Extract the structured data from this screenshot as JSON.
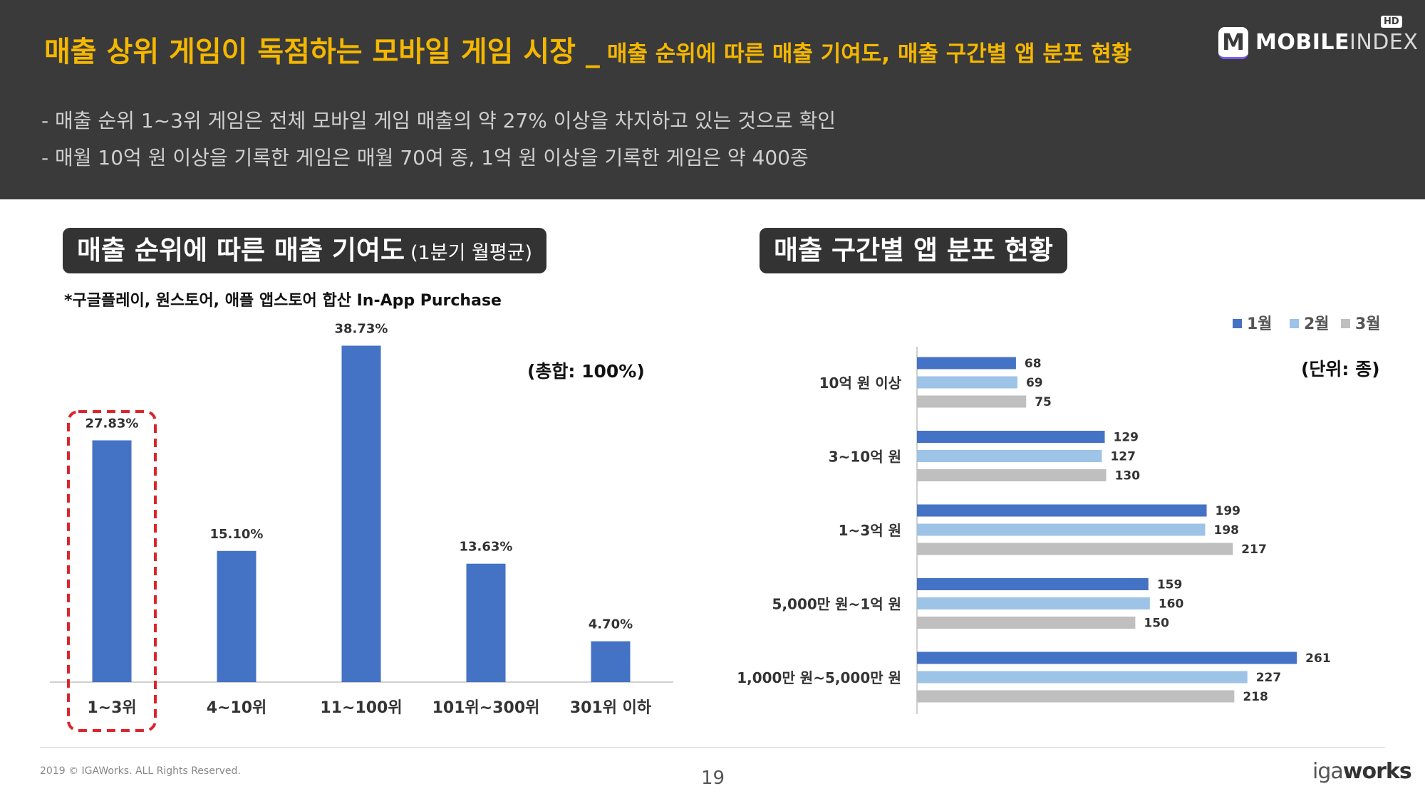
{
  "header": {
    "title_main": "매출 상위 게임이 독점하는 모바일 게임 시장 _",
    "title_sub": "매출 순위에 따른 매출 기여도, 매출 구간별 앱 분포 현황",
    "bullets": [
      "- 매출 순위 1~3위 게임은 전체 모바일 게임 매출의 약 27% 이상을 차지하고 있는 것으로 확인",
      "- 매월 10억 원 이상을 기록한 게임은 매월 70여 종, 1억 원 이상을 기록한 게임은 약 400종"
    ],
    "logo": {
      "m": "M",
      "name_bold": "MOBILE",
      "name_light": "INDEX",
      "badge": "HD"
    }
  },
  "left_panel": {
    "title_main": "매출 순위에 따른 매출 기여도",
    "title_sub": "(1분기 월평균)",
    "note": "*구글플레이, 원스토어, 애플 앱스토어 합산 In-App Purchase",
    "total_label": "(총합: 100%)"
  },
  "right_panel": {
    "title_main": "매출 구간별 앱 분포 현황",
    "unit_label": "(단위: 종)"
  },
  "chart_data": [
    {
      "type": "bar",
      "categories": [
        "1~3위",
        "4~10위",
        "11~100위",
        "101위~300위",
        "301위 이하"
      ],
      "values": [
        27.83,
        15.1,
        38.73,
        13.63,
        4.7
      ],
      "value_labels": [
        "27.83%",
        "15.10%",
        "38.73%",
        "13.63%",
        "4.70%"
      ],
      "ylim": [
        0,
        40
      ],
      "highlight_category": "1~3위",
      "color": "#4472c4"
    },
    {
      "type": "bar",
      "orientation": "horizontal",
      "categories": [
        "10억 원 이상",
        "3~10억 원",
        "1~3억 원",
        "5,000만 원~1억 원",
        "1,000만 원~5,000만 원"
      ],
      "series": [
        {
          "name": "1월",
          "values": [
            68,
            129,
            199,
            159,
            261
          ],
          "color": "#4472c4"
        },
        {
          "name": "2월",
          "values": [
            69,
            127,
            198,
            160,
            227
          ],
          "color": "#9dc3e6"
        },
        {
          "name": "3월",
          "values": [
            75,
            130,
            217,
            150,
            218
          ],
          "color": "#bfbfbf"
        }
      ],
      "xlim": [
        0,
        280
      ],
      "legend": "top-right"
    }
  ],
  "footer": {
    "copyright": "2019 © IGAWorks. ALL Rights Reserved.",
    "page": "19",
    "brand_light": "iga",
    "brand_bold": "works"
  }
}
